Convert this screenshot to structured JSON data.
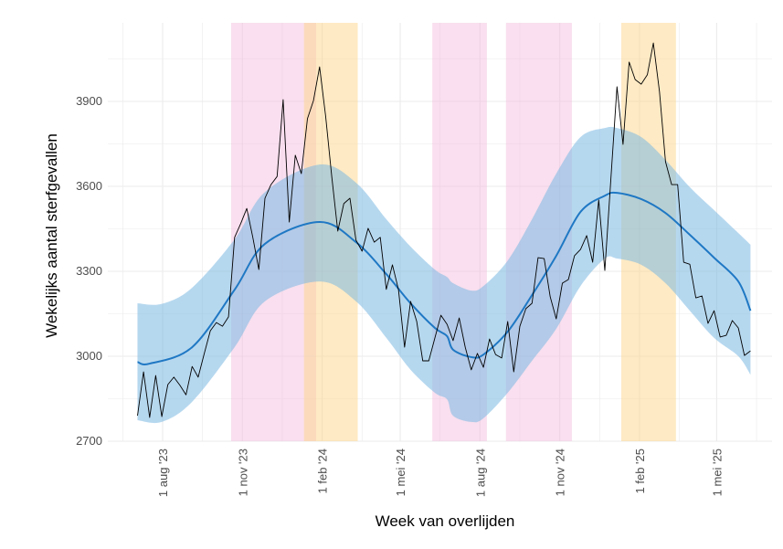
{
  "chart_data": {
    "type": "line",
    "title": "",
    "xlabel": "Week van overlijden",
    "ylabel": "Wekelijks aantal sterfgevallen",
    "ylim": [
      2700,
      4100
    ],
    "yticks": [
      2700,
      3000,
      3300,
      3600,
      3900
    ],
    "xticks": [
      {
        "date": "2023-08-01",
        "label": "1 aug '23"
      },
      {
        "date": "2023-11-01",
        "label": "1 nov '23"
      },
      {
        "date": "2024-02-01",
        "label": "1 feb '24"
      },
      {
        "date": "2024-05-01",
        "label": "1 mei '24"
      },
      {
        "date": "2024-08-01",
        "label": "1 aug '24"
      },
      {
        "date": "2024-11-01",
        "label": "1 nov '24"
      },
      {
        "date": "2025-02-01",
        "label": "1 feb '25"
      },
      {
        "date": "2025-05-01",
        "label": "1 mei '25"
      }
    ],
    "grid": true,
    "week_start": "2023-07-03",
    "observed": [
      2790,
      2945,
      2784,
      2932,
      2787,
      2900,
      2926,
      2897,
      2864,
      2964,
      2926,
      3010,
      3090,
      3119,
      3106,
      3139,
      3420,
      3468,
      3522,
      3420,
      3306,
      3558,
      3606,
      3635,
      3906,
      3474,
      3710,
      3645,
      3839,
      3903,
      4022,
      3848,
      3635,
      3442,
      3539,
      3558,
      3410,
      3371,
      3452,
      3403,
      3420,
      3236,
      3323,
      3236,
      3032,
      3194,
      3123,
      2984,
      2984,
      3065,
      3145,
      3113,
      3055,
      3135,
      3032,
      2952,
      3010,
      2961,
      3061,
      3006,
      2994,
      3123,
      2945,
      3106,
      3168,
      3187,
      3348,
      3345,
      3210,
      3132,
      3258,
      3271,
      3355,
      3377,
      3426,
      3332,
      3552,
      3303,
      3626,
      3952,
      3748,
      4039,
      3977,
      3961,
      3994,
      4106,
      3935,
      3687,
      3606,
      3606,
      3332,
      3325,
      3206,
      3213,
      3116,
      3161,
      3068,
      3074,
      3126,
      3100,
      3003,
      3019
    ],
    "expected": {
      "week_index": [
        0,
        2,
        9,
        16,
        21,
        30,
        36,
        41,
        45,
        49,
        51,
        52,
        55,
        57,
        61,
        65,
        69,
        73,
        77,
        79,
        83,
        87,
        91,
        95,
        99,
        101
      ],
      "values": [
        2980,
        2974,
        3032,
        3235,
        3397,
        3474,
        3403,
        3290,
        3187,
        3100,
        3071,
        3023,
        2997,
        3006,
        3087,
        3216,
        3355,
        3510,
        3567,
        3577,
        3555,
        3506,
        3429,
        3348,
        3264,
        3161
      ]
    },
    "band": {
      "week_index": [
        0,
        4,
        9,
        16,
        21,
        30,
        36,
        41,
        45,
        49,
        51,
        52,
        55,
        57,
        61,
        65,
        69,
        73,
        77,
        79,
        83,
        87,
        91,
        95,
        99,
        101
      ],
      "upper": [
        3187,
        3185,
        3242,
        3413,
        3580,
        3677,
        3613,
        3484,
        3387,
        3306,
        3280,
        3258,
        3232,
        3248,
        3338,
        3484,
        3645,
        3774,
        3806,
        3806,
        3774,
        3693,
        3597,
        3516,
        3435,
        3394
      ],
      "lower": [
        2774,
        2768,
        2839,
        3032,
        3194,
        3264,
        3194,
        3065,
        2952,
        2871,
        2848,
        2790,
        2768,
        2781,
        2871,
        2984,
        3097,
        3248,
        3345,
        3345,
        3323,
        3258,
        3161,
        3065,
        3000,
        2935
      ]
    },
    "periods": [
      {
        "kind": "pink",
        "start": "2023-10-19",
        "end": "2024-01-25"
      },
      {
        "kind": "orange",
        "start": "2024-01-11",
        "end": "2024-03-13"
      },
      {
        "kind": "pink",
        "start": "2024-06-07",
        "end": "2024-08-09"
      },
      {
        "kind": "pink",
        "start": "2024-08-31",
        "end": "2024-11-15"
      },
      {
        "kind": "orange",
        "start": "2025-01-11",
        "end": "2025-03-15"
      }
    ],
    "colors": {
      "observed": "#000000",
      "expected": "#1f78c4",
      "band": "#7ab8e2",
      "pink": "#f2b8dc",
      "orange": "#fdd58a",
      "grid": "#ebebeb"
    }
  }
}
